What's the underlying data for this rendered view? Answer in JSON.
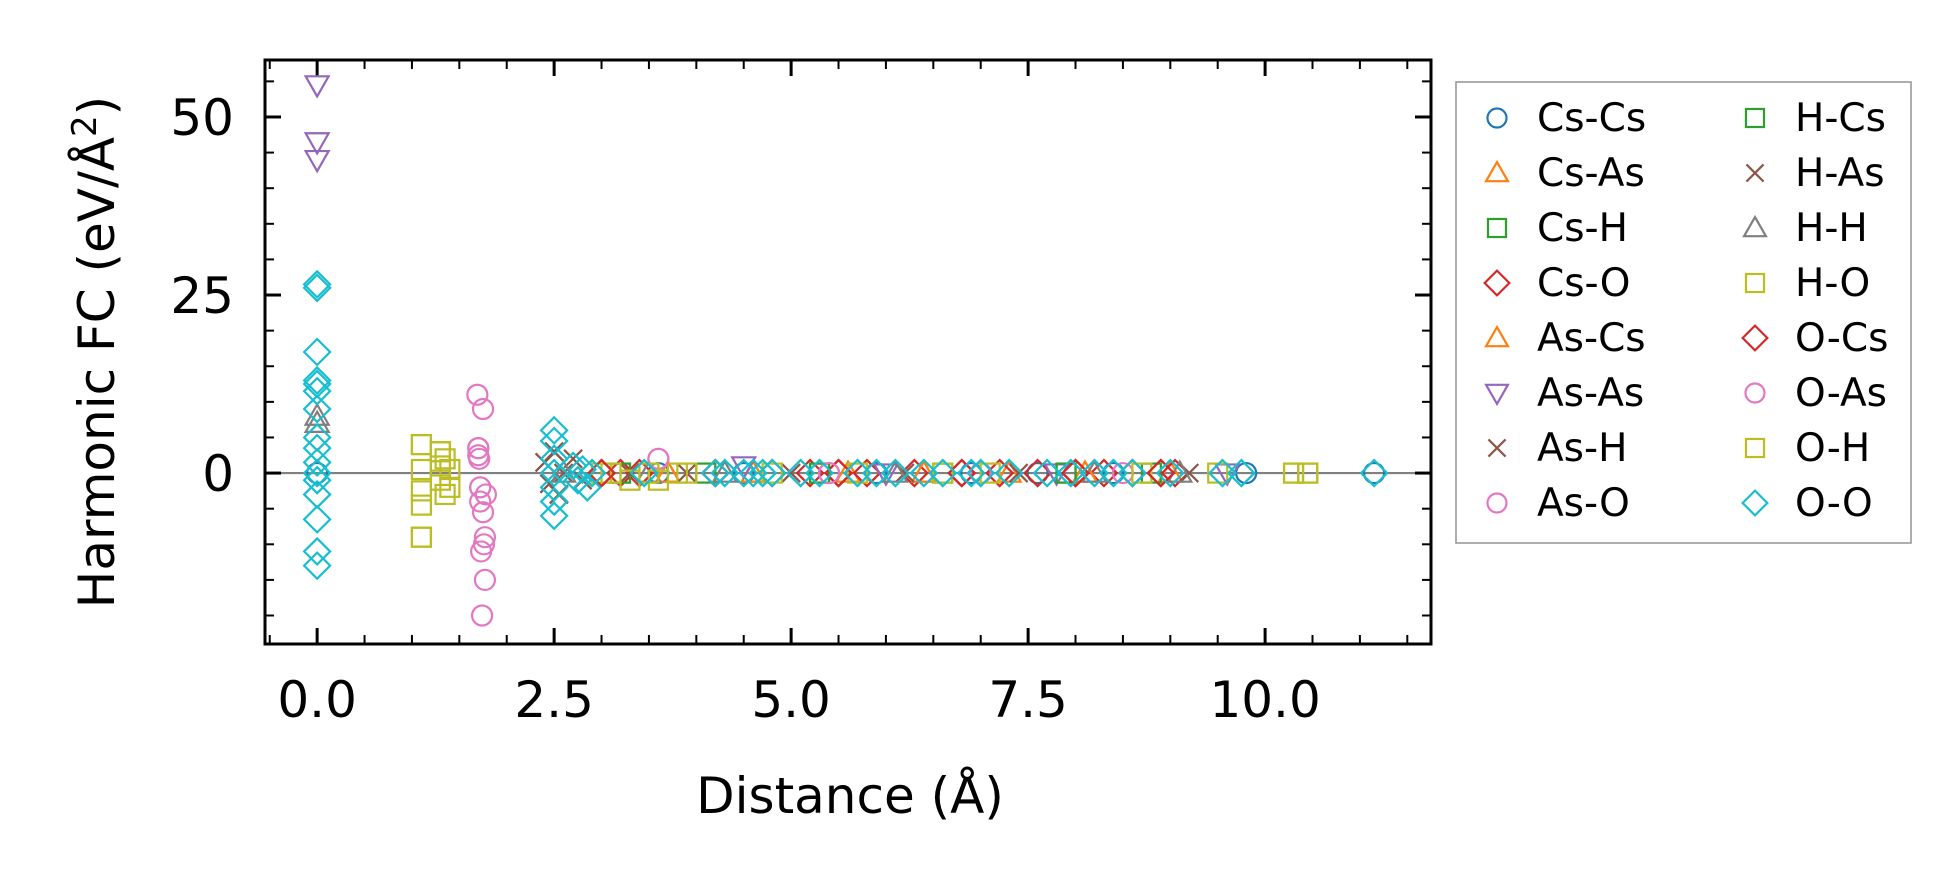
{
  "chart_data": {
    "type": "scatter",
    "title": "",
    "xlabel": "Distance (Å)",
    "ylabel_main": "Harmonic FC (eV/Å",
    "ylabel_sup": "2",
    "ylabel_end": ")",
    "xlim": [
      -0.55,
      11.75
    ],
    "ylim": [
      -24,
      58
    ],
    "xticks": [
      0.0,
      2.5,
      5.0,
      7.5,
      10.0
    ],
    "xtick_labels": [
      "0.0",
      "2.5",
      "5.0",
      "7.5",
      "10.0"
    ],
    "yticks": [
      0,
      25,
      50
    ],
    "ytick_labels": [
      "0",
      "25",
      "50"
    ],
    "zero_line": true,
    "legend_position": "outside right",
    "series": [
      {
        "name": "Cs-Cs",
        "marker": "circle",
        "color": "#1f77b4",
        "points": [
          [
            0,
            0
          ],
          [
            3.6,
            0
          ],
          [
            4.5,
            0
          ],
          [
            5.9,
            0
          ],
          [
            6.9,
            0
          ],
          [
            7.6,
            0
          ],
          [
            8.4,
            0
          ],
          [
            9.8,
            0
          ],
          [
            11.15,
            0
          ]
        ]
      },
      {
        "name": "Cs-As",
        "marker": "triangle-up",
        "color": "#ff7f0e",
        "points": [
          [
            3.7,
            0
          ],
          [
            4.6,
            0
          ],
          [
            5.6,
            0
          ],
          [
            6.4,
            0
          ],
          [
            7.3,
            0
          ],
          [
            8.1,
            0
          ],
          [
            9.0,
            0
          ]
        ]
      },
      {
        "name": "Cs-H",
        "marker": "square",
        "color": "#2ca02c",
        "points": [
          [
            3.2,
            0
          ],
          [
            4.1,
            0
          ],
          [
            5.3,
            0
          ],
          [
            6.6,
            0
          ],
          [
            7.9,
            0
          ],
          [
            8.8,
            0
          ]
        ]
      },
      {
        "name": "Cs-O",
        "marker": "diamond",
        "color": "#d62728",
        "points": [
          [
            3.0,
            0
          ],
          [
            3.2,
            0
          ],
          [
            3.4,
            0
          ],
          [
            4.2,
            0
          ],
          [
            4.8,
            0
          ],
          [
            5.2,
            0
          ],
          [
            5.5,
            0
          ],
          [
            5.8,
            0
          ],
          [
            6.3,
            0
          ],
          [
            6.8,
            0
          ],
          [
            7.2,
            0
          ],
          [
            7.6,
            0
          ],
          [
            8.0,
            0
          ],
          [
            8.3,
            0
          ],
          [
            8.6,
            0
          ],
          [
            8.9,
            0
          ],
          [
            9.05,
            0
          ]
        ]
      },
      {
        "name": "As-Cs",
        "marker": "triangle-up",
        "color": "#ff7f0e",
        "points": [
          [
            3.7,
            0
          ],
          [
            4.6,
            0
          ],
          [
            6.4,
            0
          ],
          [
            8.1,
            0
          ]
        ]
      },
      {
        "name": "As-As",
        "marker": "triangle-down",
        "color": "#9467bd",
        "points": [
          [
            0,
            54.5
          ],
          [
            0,
            46.5
          ],
          [
            0,
            44
          ],
          [
            4.5,
            1
          ],
          [
            6.0,
            0
          ],
          [
            7.8,
            0
          ],
          [
            9.6,
            0
          ]
        ]
      },
      {
        "name": "As-H",
        "marker": "x",
        "color": "#8c564b",
        "points": [
          [
            2.4,
            1.5
          ],
          [
            2.45,
            -1.5
          ],
          [
            2.5,
            3
          ],
          [
            2.55,
            -3
          ],
          [
            2.6,
            0
          ],
          [
            2.7,
            2
          ],
          [
            2.8,
            -1
          ],
          [
            3.3,
            0
          ],
          [
            3.9,
            0
          ],
          [
            5.0,
            0
          ],
          [
            6.2,
            0
          ],
          [
            7.4,
            0
          ],
          [
            9.2,
            0
          ]
        ]
      },
      {
        "name": "As-O",
        "marker": "circle",
        "color": "#e377c2",
        "points": [
          [
            1.69,
            11
          ],
          [
            1.7,
            3.5
          ],
          [
            1.7,
            2.5
          ],
          [
            1.71,
            2
          ],
          [
            1.72,
            -2
          ],
          [
            1.72,
            -4
          ],
          [
            1.73,
            -11
          ],
          [
            1.74,
            -20
          ],
          [
            1.75,
            9
          ],
          [
            1.75,
            -5.5
          ],
          [
            1.76,
            -10
          ],
          [
            1.77,
            -15
          ],
          [
            1.77,
            -9
          ],
          [
            1.78,
            -3
          ],
          [
            3.6,
            2
          ],
          [
            5.4,
            0
          ],
          [
            7.0,
            0
          ],
          [
            8.5,
            0
          ]
        ]
      },
      {
        "name": "H-Cs",
        "marker": "square",
        "color": "#2ca02c",
        "points": [
          [
            3.2,
            0
          ],
          [
            5.3,
            0
          ],
          [
            7.9,
            0
          ]
        ]
      },
      {
        "name": "H-As",
        "marker": "x",
        "color": "#8c564b",
        "points": [
          [
            2.4,
            1.5
          ],
          [
            2.45,
            -1.5
          ],
          [
            2.5,
            3
          ],
          [
            2.55,
            -3
          ],
          [
            3.3,
            0
          ]
        ]
      },
      {
        "name": "H-H",
        "marker": "triangle-up",
        "color": "#7f7f7f",
        "points": [
          [
            0,
            8
          ],
          [
            0,
            7
          ],
          [
            2.6,
            0
          ],
          [
            3.5,
            0
          ],
          [
            4.3,
            0
          ],
          [
            6.1,
            0
          ],
          [
            8.2,
            0
          ],
          [
            9.1,
            0
          ]
        ]
      },
      {
        "name": "H-O",
        "marker": "square",
        "color": "#bcbd22",
        "points": [
          [
            1.1,
            4
          ],
          [
            1.1,
            0.5
          ],
          [
            1.1,
            -2.5
          ],
          [
            1.1,
            -4.5
          ],
          [
            1.1,
            -9
          ],
          [
            1.3,
            3
          ],
          [
            1.3,
            1
          ],
          [
            1.3,
            -1
          ],
          [
            1.35,
            2
          ],
          [
            1.35,
            -3
          ],
          [
            1.4,
            0.5
          ],
          [
            1.4,
            -2
          ],
          [
            3.0,
            0
          ],
          [
            3.1,
            0
          ],
          [
            3.3,
            -1
          ],
          [
            3.5,
            0
          ],
          [
            3.6,
            -1
          ],
          [
            3.8,
            0
          ],
          [
            3.9,
            0
          ],
          [
            4.8,
            0
          ],
          [
            5.7,
            0
          ],
          [
            6.6,
            0
          ],
          [
            7.1,
            0
          ],
          [
            8.7,
            0
          ],
          [
            9.5,
            0
          ],
          [
            10.3,
            0
          ],
          [
            10.45,
            0
          ]
        ]
      },
      {
        "name": "O-Cs",
        "marker": "diamond",
        "color": "#d62728",
        "points": [
          [
            3.0,
            0
          ],
          [
            4.2,
            0
          ],
          [
            5.5,
            0
          ],
          [
            6.8,
            0
          ],
          [
            8.0,
            0
          ],
          [
            8.9,
            0
          ]
        ]
      },
      {
        "name": "O-As",
        "marker": "circle",
        "color": "#e377c2",
        "points": [
          [
            1.7,
            3.5
          ],
          [
            1.72,
            -2
          ],
          [
            3.6,
            2
          ],
          [
            5.4,
            0
          ]
        ]
      },
      {
        "name": "O-H",
        "marker": "square",
        "color": "#bcbd22",
        "points": [
          [
            1.1,
            4
          ],
          [
            1.1,
            -9
          ],
          [
            1.3,
            3
          ],
          [
            3.5,
            0
          ],
          [
            10.3,
            0
          ],
          [
            10.45,
            0
          ]
        ]
      },
      {
        "name": "O-O",
        "marker": "diamond",
        "color": "#17becf",
        "points": [
          [
            0,
            26.5
          ],
          [
            0,
            26
          ],
          [
            0,
            17
          ],
          [
            0,
            13
          ],
          [
            0,
            12.5
          ],
          [
            0,
            11.5
          ],
          [
            0,
            9
          ],
          [
            0,
            5
          ],
          [
            0,
            3.5
          ],
          [
            0,
            1.5
          ],
          [
            0,
            0
          ],
          [
            0,
            -1
          ],
          [
            0,
            -3
          ],
          [
            0,
            -6.5
          ],
          [
            0,
            -11
          ],
          [
            0,
            -13
          ],
          [
            2.5,
            6
          ],
          [
            2.5,
            4.5
          ],
          [
            2.5,
            2
          ],
          [
            2.5,
            0
          ],
          [
            2.5,
            -2
          ],
          [
            2.5,
            -4
          ],
          [
            2.5,
            -6
          ],
          [
            2.7,
            1
          ],
          [
            2.75,
            -1
          ],
          [
            2.8,
            0.5
          ],
          [
            2.85,
            -2
          ],
          [
            2.9,
            0
          ],
          [
            3.45,
            0
          ],
          [
            4.2,
            0
          ],
          [
            4.3,
            0
          ],
          [
            4.5,
            0
          ],
          [
            4.6,
            0
          ],
          [
            4.7,
            0
          ],
          [
            4.8,
            0
          ],
          [
            5.1,
            0
          ],
          [
            5.3,
            0
          ],
          [
            5.7,
            0
          ],
          [
            5.9,
            0
          ],
          [
            6.1,
            0
          ],
          [
            6.4,
            0
          ],
          [
            6.6,
            0
          ],
          [
            6.9,
            0
          ],
          [
            7.0,
            0
          ],
          [
            7.3,
            0
          ],
          [
            7.7,
            0
          ],
          [
            7.95,
            0
          ],
          [
            8.2,
            0
          ],
          [
            8.4,
            0
          ],
          [
            8.6,
            0
          ],
          [
            9.0,
            0
          ],
          [
            9.55,
            0
          ],
          [
            9.75,
            0
          ],
          [
            11.15,
            0
          ]
        ]
      }
    ]
  }
}
